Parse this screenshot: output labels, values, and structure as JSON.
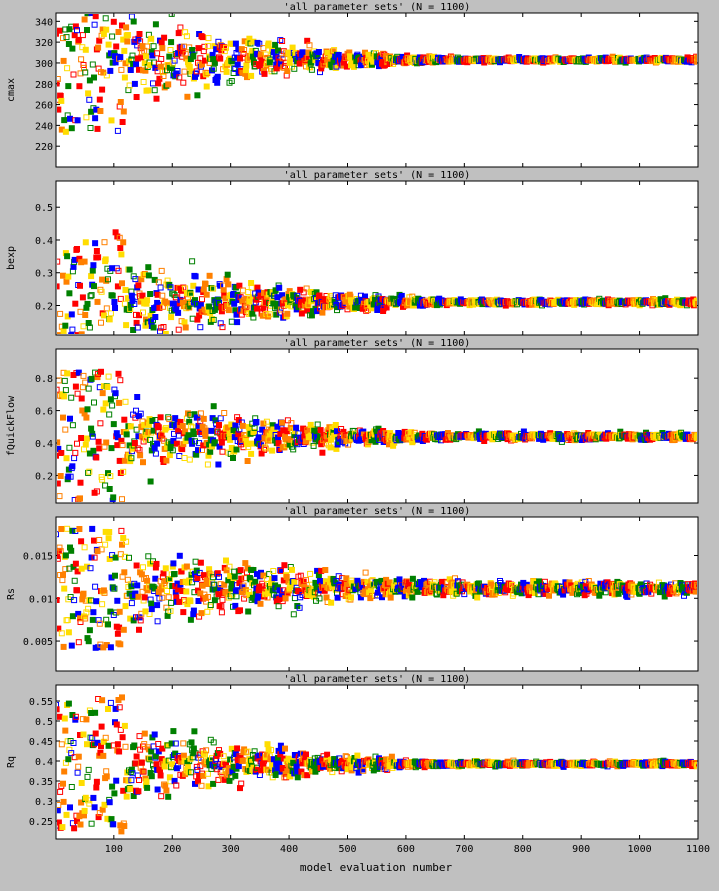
{
  "figure": {
    "background": "#c0c0c0",
    "colors": [
      "#0000ff",
      "#ff0000",
      "#ff8000",
      "#ffdd00",
      "#008000"
    ],
    "xlabel": "model evaluation number",
    "xticks": [
      100,
      200,
      300,
      400,
      500,
      600,
      700,
      800,
      900,
      1000,
      1100
    ]
  },
  "chart_data": [
    {
      "type": "scatter",
      "title": "'all parameter sets' (N = 1100)",
      "ylabel": "cmax",
      "xlim": [
        1,
        1100
      ],
      "ylim": [
        200,
        348
      ],
      "yticks": [
        "220",
        "240",
        "260",
        "280",
        "300",
        "320",
        "340"
      ],
      "ytick_values": [
        220,
        240,
        260,
        280,
        300,
        320,
        340
      ],
      "convergence": {
        "final_value": 303,
        "initial_spread": 70,
        "final_spread": 3
      }
    },
    {
      "type": "scatter",
      "title": "'all parameter sets' (N = 1100)",
      "ylabel": "bexp",
      "xlim": [
        1,
        1100
      ],
      "ylim": [
        0.11,
        0.58
      ],
      "yticks": [
        "0.2",
        "0.3",
        "0.4",
        "0.5"
      ],
      "ytick_values": [
        0.2,
        0.3,
        0.4,
        0.5
      ],
      "convergence": {
        "final_value": 0.21,
        "initial_spread": 0.22,
        "final_spread": 0.012
      }
    },
    {
      "type": "scatter",
      "title": "'all parameter sets' (N = 1100)",
      "ylabel": "fQuickFlow",
      "xlim": [
        1,
        1100
      ],
      "ylim": [
        0.03,
        0.98
      ],
      "yticks": [
        "0.2",
        "0.4",
        "0.6",
        "0.8"
      ],
      "ytick_values": [
        0.2,
        0.4,
        0.6,
        0.8
      ],
      "convergence": {
        "final_value": 0.44,
        "initial_spread": 0.4,
        "final_spread": 0.03
      }
    },
    {
      "type": "scatter",
      "title": "'all parameter sets' (N = 1100)",
      "ylabel": "Rs",
      "xlim": [
        1,
        1100
      ],
      "ylim": [
        0.0015,
        0.0195
      ],
      "yticks": [
        "0.005",
        "0.01",
        "0.015"
      ],
      "ytick_values": [
        0.005,
        0.01,
        0.015
      ],
      "convergence": {
        "final_value": 0.0112,
        "initial_spread": 0.007,
        "final_spread": 0.0012
      }
    },
    {
      "type": "scatter",
      "title": "'all parameter sets' (N = 1100)",
      "ylabel": "Rq",
      "xlim": [
        1,
        1100
      ],
      "ylim": [
        0.205,
        0.59
      ],
      "yticks": [
        "0.25",
        "0.3",
        "0.35",
        "0.4",
        "0.45",
        "0.5",
        "0.55"
      ],
      "ytick_values": [
        0.25,
        0.3,
        0.35,
        0.4,
        0.45,
        0.5,
        0.55
      ],
      "convergence": {
        "final_value": 0.393,
        "initial_spread": 0.17,
        "final_spread": 0.008
      }
    }
  ]
}
